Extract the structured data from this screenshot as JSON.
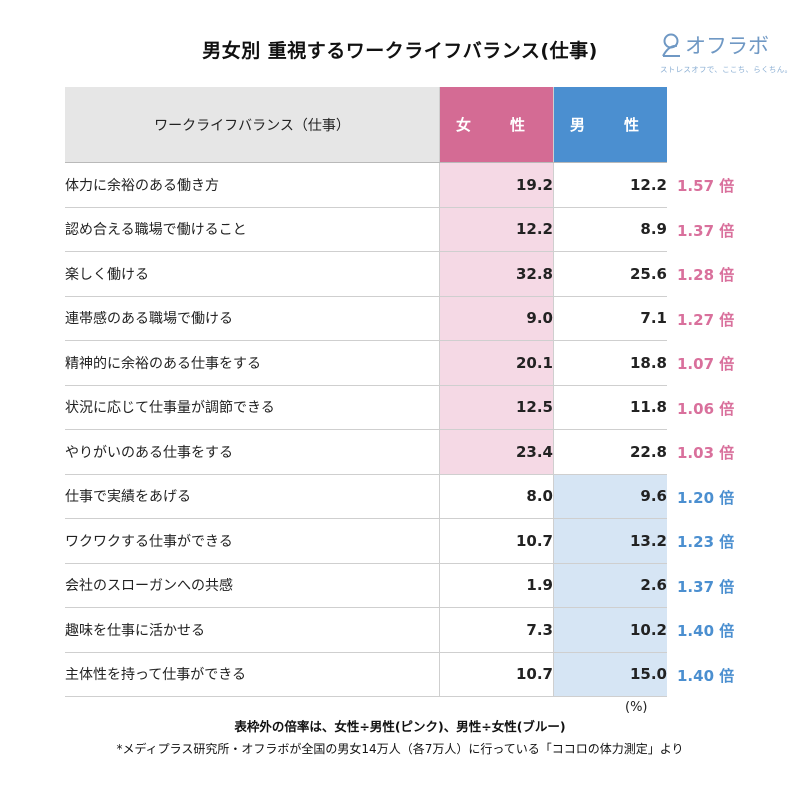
{
  "logo": {
    "name": "オフラボ",
    "tagline": "ストレスオフで、ここち、らくちん。"
  },
  "chart_data": {
    "type": "table",
    "title": "男女別 重視するワークライフバランス(仕事)",
    "columns": [
      "ワークライフバランス（仕事）",
      "女　性",
      "男　性"
    ],
    "unit": "(%)",
    "rows": [
      {
        "label": "体力に余裕のある働き方",
        "female": "19.2",
        "male": "12.2",
        "ratio": "1.57 倍",
        "highlight": "female"
      },
      {
        "label": "認め合える職場で働けること",
        "female": "12.2",
        "male": "8.9",
        "ratio": "1.37 倍",
        "highlight": "female"
      },
      {
        "label": "楽しく働ける",
        "female": "32.8",
        "male": "25.6",
        "ratio": "1.28 倍",
        "highlight": "female"
      },
      {
        "label": "連帯感のある職場で働ける",
        "female": "9.0",
        "male": "7.1",
        "ratio": "1.27 倍",
        "highlight": "female"
      },
      {
        "label": "精神的に余裕のある仕事をする",
        "female": "20.1",
        "male": "18.8",
        "ratio": "1.07 倍",
        "highlight": "female"
      },
      {
        "label": "状況に応じて仕事量が調節できる",
        "female": "12.5",
        "male": "11.8",
        "ratio": "1.06 倍",
        "highlight": "female"
      },
      {
        "label": "やりがいのある仕事をする",
        "female": "23.4",
        "male": "22.8",
        "ratio": "1.03 倍",
        "highlight": "female"
      },
      {
        "label": "仕事で実績をあげる",
        "female": "8.0",
        "male": "9.6",
        "ratio": "1.20 倍",
        "highlight": "male"
      },
      {
        "label": "ワクワクする仕事ができる",
        "female": "10.7",
        "male": "13.2",
        "ratio": "1.23 倍",
        "highlight": "male"
      },
      {
        "label": "会社のスローガンへの共感",
        "female": "1.9",
        "male": "2.6",
        "ratio": "1.37 倍",
        "highlight": "male"
      },
      {
        "label": "趣味を仕事に活かせる",
        "female": "7.3",
        "male": "10.2",
        "ratio": "1.40 倍",
        "highlight": "male"
      },
      {
        "label": "主体性を持って仕事ができる",
        "female": "10.7",
        "male": "15.0",
        "ratio": "1.40 倍",
        "highlight": "male"
      }
    ],
    "note": "表枠外の倍率は、女性÷男性(ピンク)、男性÷女性(ブルー)",
    "source": "*メディプラス研究所・オフラボが全国の男女14万人（各7万人）に行っている「ココロの体力測定」より"
  },
  "colors": {
    "female_header": "#d46b94",
    "male_header": "#4b8fd0",
    "female_highlight": "#f5d9e5",
    "male_highlight": "#d6e5f4",
    "female_ratio": "#d9709c",
    "male_ratio": "#4b8fd0",
    "label_header_bg": "#e6e6e6"
  }
}
